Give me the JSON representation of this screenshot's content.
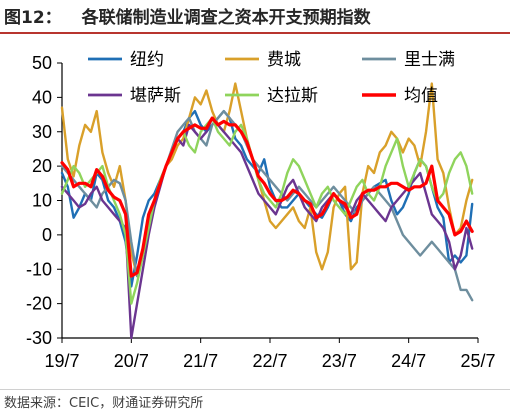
{
  "title": {
    "label": "图12：",
    "text": "各联储制造业调查之资本开支预期指数"
  },
  "source": "数据来源：CEIC，财通证券研究所",
  "chart_data": {
    "type": "line",
    "ylim": [
      -30,
      50
    ],
    "yticks": [
      -30,
      -20,
      -10,
      0,
      10,
      20,
      30,
      40,
      50
    ],
    "xlim": [
      0,
      72
    ],
    "xticks": [
      {
        "pos": 0,
        "label": "19/7"
      },
      {
        "pos": 12,
        "label": "20/7"
      },
      {
        "pos": 24,
        "label": "21/7"
      },
      {
        "pos": 36,
        "label": "22/7"
      },
      {
        "pos": 48,
        "label": "23/7"
      },
      {
        "pos": 60,
        "label": "24/7"
      },
      {
        "pos": 72,
        "label": "25/7"
      }
    ],
    "legend": {
      "placement": "top",
      "columns": 3
    },
    "series": [
      {
        "name": "纽约",
        "color": "#1f6fb5",
        "width": 2.4,
        "values": [
          18,
          14,
          5,
          8,
          12,
          10,
          18,
          16,
          10,
          8,
          4,
          -2,
          -15,
          -6,
          5,
          10,
          12,
          16,
          20,
          24,
          28,
          30,
          34,
          36,
          32,
          30,
          32,
          34,
          36,
          34,
          28,
          26,
          22,
          20,
          18,
          22,
          14,
          10,
          8,
          8,
          10,
          12,
          10,
          8,
          6,
          5,
          8,
          12,
          10,
          6,
          4,
          8,
          10,
          12,
          14,
          15,
          16,
          10,
          6,
          8,
          12,
          18,
          22,
          20,
          14,
          8,
          5,
          -8,
          -6,
          -8,
          -6,
          9
        ]
      },
      {
        "name": "费城",
        "color": "#d9a02a",
        "width": 2.4,
        "values": [
          37,
          22,
          17,
          26,
          32,
          30,
          36,
          24,
          18,
          14,
          20,
          10,
          -5,
          -12,
          -5,
          6,
          10,
          15,
          20,
          22,
          26,
          28,
          34,
          40,
          38,
          42,
          36,
          32,
          30,
          36,
          44,
          36,
          28,
          22,
          16,
          10,
          4,
          2,
          4,
          6,
          8,
          4,
          2,
          8,
          -5,
          -10,
          -5,
          8,
          12,
          14,
          -10,
          -8,
          12,
          20,
          18,
          24,
          26,
          30,
          28,
          24,
          28,
          26,
          20,
          30,
          44,
          22,
          18,
          8,
          0,
          2,
          10,
          16
        ]
      },
      {
        "name": "里士满",
        "color": "#6e8e9e",
        "width": 2.4,
        "values": [
          20,
          18,
          16,
          14,
          12,
          10,
          8,
          12,
          14,
          16,
          15,
          10,
          -2,
          -12,
          -5,
          5,
          10,
          15,
          20,
          25,
          30,
          32,
          34,
          30,
          28,
          26,
          32,
          34,
          36,
          34,
          32,
          30,
          26,
          22,
          20,
          18,
          16,
          14,
          12,
          10,
          12,
          14,
          12,
          10,
          8,
          10,
          12,
          14,
          12,
          10,
          8,
          6,
          10,
          12,
          14,
          12,
          10,
          8,
          4,
          0,
          -2,
          -4,
          -6,
          -4,
          -2,
          -4,
          -6,
          -8,
          -10,
          -16,
          -16,
          -19
        ]
      },
      {
        "name": "堪萨斯",
        "color": "#6b3590",
        "width": 2.4,
        "values": [
          14,
          12,
          10,
          8,
          9,
          12,
          14,
          10,
          8,
          6,
          4,
          2,
          -30,
          -20,
          -10,
          0,
          8,
          14,
          20,
          24,
          28,
          26,
          32,
          30,
          28,
          30,
          34,
          32,
          30,
          28,
          26,
          24,
          20,
          16,
          12,
          10,
          8,
          6,
          10,
          14,
          16,
          12,
          8,
          6,
          4,
          8,
          10,
          12,
          10,
          8,
          6,
          10,
          12,
          10,
          8,
          6,
          4,
          8,
          10,
          12,
          14,
          16,
          18,
          12,
          6,
          4,
          2,
          -2,
          -10,
          -6,
          2,
          -4
        ]
      },
      {
        "name": "达拉斯",
        "color": "#8fd45c",
        "width": 2.4,
        "values": [
          12,
          16,
          20,
          18,
          14,
          16,
          18,
          20,
          14,
          10,
          6,
          0,
          -20,
          -14,
          -6,
          2,
          10,
          16,
          20,
          24,
          28,
          30,
          26,
          24,
          30,
          32,
          34,
          30,
          28,
          26,
          30,
          32,
          28,
          22,
          16,
          12,
          10,
          8,
          12,
          18,
          22,
          20,
          16,
          12,
          8,
          12,
          14,
          10,
          8,
          6,
          10,
          14,
          16,
          12,
          10,
          14,
          20,
          24,
          28,
          20,
          14,
          18,
          22,
          20,
          14,
          10,
          12,
          18,
          22,
          24,
          20,
          12
        ]
      },
      {
        "name": "均值",
        "color": "#ff0000",
        "width": 3.2,
        "values": [
          21,
          19,
          14,
          15,
          15,
          14,
          19,
          17,
          13,
          11,
          10,
          6,
          -12,
          -11,
          -4,
          6,
          10,
          15,
          20,
          24,
          28,
          30,
          31,
          32,
          31,
          31,
          34,
          32,
          33,
          32,
          32,
          30,
          27,
          22,
          17,
          15,
          12,
          10,
          10,
          11,
          13,
          12,
          10,
          9,
          5,
          6,
          9,
          12,
          10,
          9,
          5,
          6,
          12,
          13,
          13,
          14,
          14,
          15,
          15,
          14,
          13,
          14,
          14,
          15,
          20,
          10,
          8,
          6,
          0,
          1,
          4,
          1
        ]
      }
    ]
  }
}
